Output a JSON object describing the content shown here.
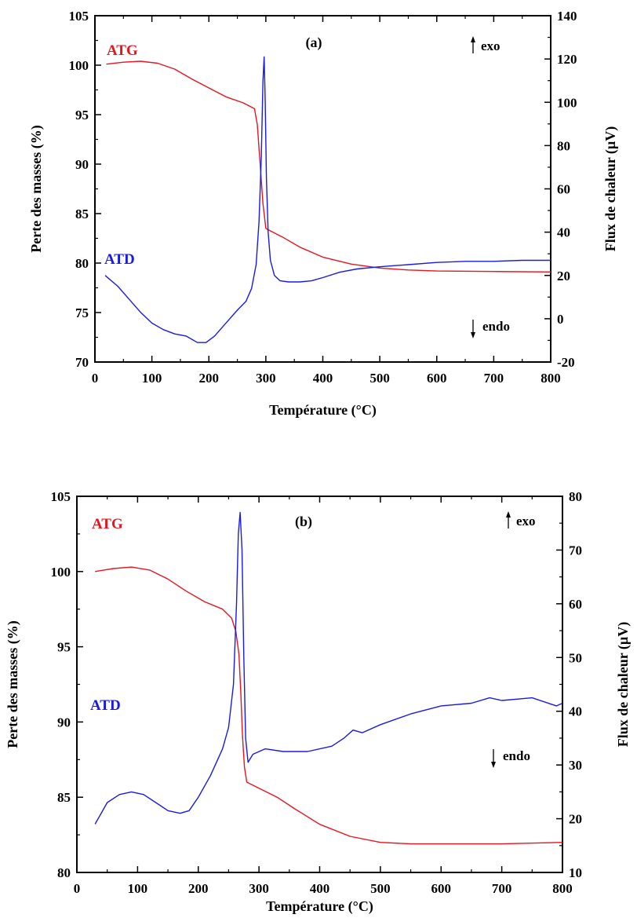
{
  "chart_data": [
    {
      "type": "line",
      "panel_label": "(a)",
      "xlabel": "Température (°C)",
      "ylabel_left": "Perte des masses (%)",
      "ylabel_right": "Flux de chaleur (µV)",
      "xlim": [
        0,
        800
      ],
      "ylim_left": [
        70,
        105
      ],
      "ylim_right": [
        -20,
        140
      ],
      "x_ticks": [
        "0",
        "100",
        "200",
        "300",
        "400",
        "500",
        "600",
        "700",
        "800"
      ],
      "y_left_ticks": [
        "70",
        "75",
        "80",
        "85",
        "90",
        "95",
        "100",
        "105"
      ],
      "y_right_ticks": [
        "-20",
        "0",
        "20",
        "40",
        "60",
        "80",
        "100",
        "120",
        "140"
      ],
      "annotations": {
        "exo": "exo",
        "endo": "endo"
      },
      "grid": false,
      "series": [
        {
          "name": "ATG",
          "axis": "left",
          "color": "#e8141e",
          "x": [
            20,
            50,
            80,
            110,
            140,
            170,
            200,
            230,
            260,
            280,
            285,
            290,
            295,
            300,
            310,
            330,
            360,
            400,
            450,
            500,
            550,
            600,
            700,
            800
          ],
          "y": [
            100.1,
            100.3,
            100.4,
            100.2,
            99.6,
            98.6,
            97.7,
            96.8,
            96.2,
            95.6,
            94.0,
            90.0,
            86.0,
            83.5,
            83.2,
            82.6,
            81.6,
            80.6,
            79.9,
            79.5,
            79.3,
            79.2,
            79.15,
            79.1
          ]
        },
        {
          "name": "ATD",
          "axis": "right",
          "color": "#1a1ae6",
          "x": [
            18,
            40,
            60,
            80,
            100,
            120,
            140,
            160,
            180,
            195,
            210,
            230,
            250,
            265,
            275,
            283,
            288,
            292,
            295,
            297,
            299,
            301,
            304,
            308,
            315,
            325,
            340,
            360,
            380,
            400,
            430,
            460,
            500,
            550,
            600,
            650,
            700,
            750,
            800
          ],
          "y": [
            20,
            15,
            9,
            3,
            -2,
            -5,
            -7,
            -8,
            -11,
            -11,
            -8,
            -2,
            4,
            8,
            14,
            25,
            45,
            75,
            110,
            121,
            100,
            65,
            40,
            27,
            20,
            17.5,
            17,
            17,
            17.5,
            19,
            21.5,
            23,
            24,
            25,
            26,
            26.5,
            26.5,
            27,
            27
          ]
        }
      ]
    },
    {
      "type": "line",
      "panel_label": "(b)",
      "xlabel": "Température (°C)",
      "ylabel_left": "Perte des masses (%)",
      "ylabel_right": "Flux de chaleur (µV)",
      "xlim": [
        0,
        800
      ],
      "ylim_left": [
        80,
        105
      ],
      "ylim_right": [
        10,
        80
      ],
      "x_ticks": [
        "0",
        "100",
        "200",
        "300",
        "400",
        "500",
        "600",
        "700",
        "800"
      ],
      "y_left_ticks": [
        "80",
        "85",
        "90",
        "95",
        "100",
        "105"
      ],
      "y_right_ticks": [
        "10",
        "20",
        "30",
        "40",
        "50",
        "60",
        "70",
        "80"
      ],
      "annotations": {
        "exo": "exo",
        "endo": "endo"
      },
      "grid": false,
      "series": [
        {
          "name": "ATG",
          "axis": "left",
          "color": "#e8141e",
          "x": [
            30,
            60,
            90,
            120,
            150,
            180,
            210,
            240,
            255,
            262,
            267,
            270,
            273,
            276,
            280,
            300,
            330,
            360,
            400,
            450,
            500,
            550,
            600,
            700,
            800
          ],
          "y": [
            100.0,
            100.2,
            100.3,
            100.1,
            99.5,
            98.7,
            98.0,
            97.5,
            96.9,
            96.0,
            94.5,
            92.0,
            89.0,
            87.0,
            86.0,
            85.6,
            85.0,
            84.2,
            83.2,
            82.4,
            82.0,
            81.9,
            81.9,
            81.9,
            82.0
          ]
        },
        {
          "name": "ATD",
          "axis": "right",
          "color": "#1a1ae6",
          "x": [
            30,
            50,
            70,
            90,
            110,
            130,
            150,
            170,
            185,
            200,
            220,
            240,
            250,
            258,
            263,
            266,
            269,
            272,
            275,
            278,
            282,
            290,
            310,
            340,
            380,
            420,
            440,
            455,
            470,
            500,
            550,
            600,
            650,
            680,
            700,
            750,
            790,
            800
          ],
          "y": [
            19,
            23,
            24.5,
            25,
            24.5,
            23,
            21.5,
            21,
            21.5,
            24,
            28,
            33,
            37,
            45,
            60,
            73,
            77,
            70,
            50,
            35,
            30.5,
            32,
            33,
            32.5,
            32.5,
            33.5,
            35,
            36.5,
            36,
            37.5,
            39.5,
            41,
            41.5,
            42.5,
            42,
            42.5,
            41,
            41.5
          ]
        }
      ]
    }
  ]
}
